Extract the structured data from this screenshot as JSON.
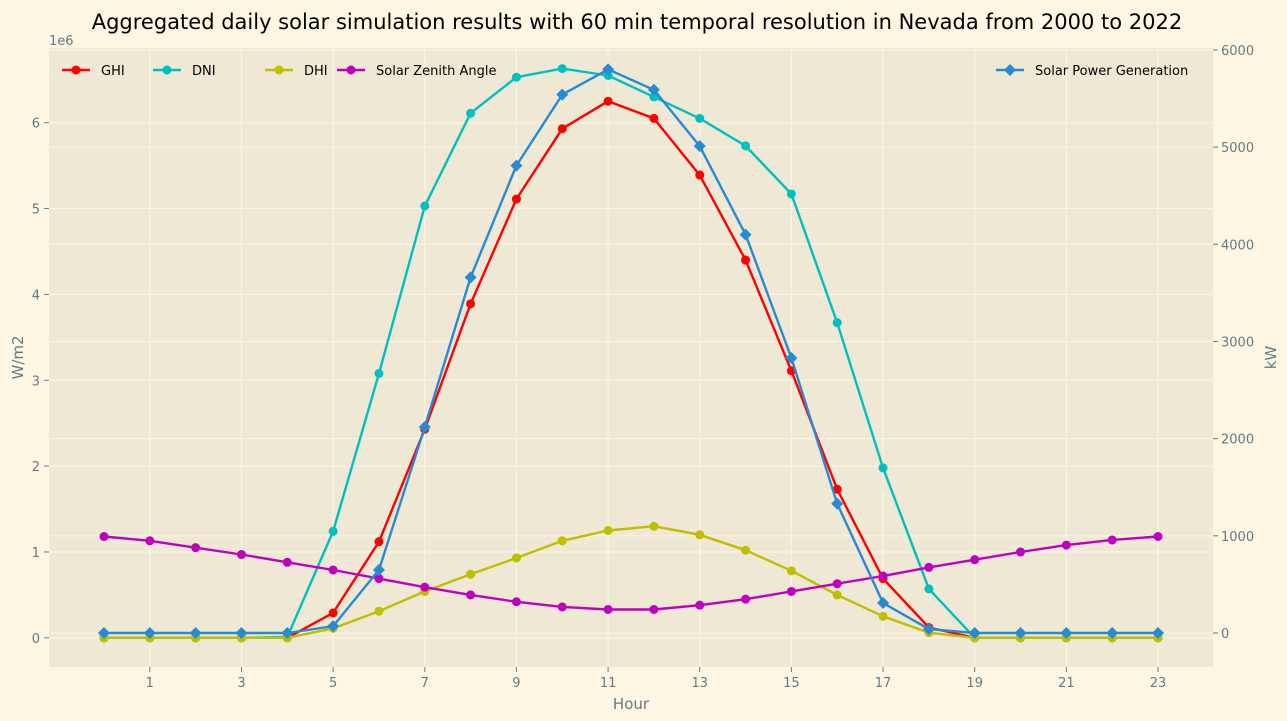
{
  "chart_data": {
    "type": "line",
    "title": "Aggregated daily solar simulation results with 60 min temporal resolution in Nevada from 2000 to 2022",
    "xlabel": "Hour",
    "ylabel_left": "W/m2",
    "ylabel_right": "kW",
    "left_axis_multiplier": "1e6",
    "x": [
      0,
      1,
      2,
      3,
      4,
      5,
      6,
      7,
      8,
      9,
      10,
      11,
      12,
      13,
      14,
      15,
      16,
      17,
      18,
      19,
      20,
      21,
      22,
      23
    ],
    "x_ticks": [
      "1",
      "3",
      "5",
      "7",
      "9",
      "11",
      "13",
      "15",
      "17",
      "19",
      "21",
      "23"
    ],
    "y_left_ticks": [
      "0",
      "1",
      "2",
      "3",
      "4",
      "5",
      "6"
    ],
    "y_right_ticks": [
      "0",
      "1000",
      "2000",
      "3000",
      "4000",
      "5000",
      "6000"
    ],
    "ylim_left": [
      -0.34,
      6.87
    ],
    "ylim_right": [
      -350,
      6020
    ],
    "grid": true,
    "legend_left": "upper-left",
    "legend_right": "upper-right",
    "series": [
      {
        "name": "GHI",
        "axis": "left",
        "color": "#ff0000",
        "marker": "circle",
        "values": [
          0,
          0,
          0,
          0,
          0,
          0.29,
          1.12,
          2.43,
          3.89,
          5.11,
          5.93,
          6.25,
          6.05,
          5.39,
          4.4,
          3.11,
          1.73,
          0.69,
          0.12,
          0,
          0,
          0,
          0,
          0
        ]
      },
      {
        "name": "DNI",
        "axis": "left",
        "color": "#00bfbf",
        "marker": "circle",
        "values": [
          0,
          0,
          0,
          0,
          0.01,
          1.24,
          3.08,
          5.03,
          6.11,
          6.53,
          6.63,
          6.55,
          6.3,
          6.05,
          5.73,
          5.17,
          3.67,
          1.98,
          0.57,
          0,
          0,
          0,
          0,
          0
        ]
      },
      {
        "name": "DHI",
        "axis": "left",
        "color": "#bfbf00",
        "marker": "circle",
        "values": [
          0,
          0,
          0,
          0,
          0,
          0.11,
          0.31,
          0.54,
          0.74,
          0.93,
          1.13,
          1.25,
          1.3,
          1.2,
          1.02,
          0.78,
          0.5,
          0.25,
          0.06,
          0,
          0,
          0,
          0,
          0
        ]
      },
      {
        "name": "Solar Zenith Angle",
        "axis": "left",
        "color": "#bf00bf",
        "marker": "circle",
        "values": [
          1.18,
          1.13,
          1.05,
          0.97,
          0.88,
          0.79,
          0.69,
          0.59,
          0.5,
          0.42,
          0.36,
          0.33,
          0.33,
          0.38,
          0.45,
          0.54,
          0.63,
          0.72,
          0.82,
          0.91,
          1.0,
          1.08,
          1.14,
          1.18
        ]
      },
      {
        "name": "Solar Power Generation",
        "axis": "right",
        "color": "#268bd2",
        "marker": "diamond",
        "values": [
          0,
          0,
          0,
          0,
          0,
          70,
          650,
          2120,
          3660,
          4810,
          5540,
          5800,
          5590,
          5010,
          4100,
          2830,
          1330,
          310,
          40,
          0,
          0,
          0,
          0,
          0
        ]
      }
    ]
  }
}
